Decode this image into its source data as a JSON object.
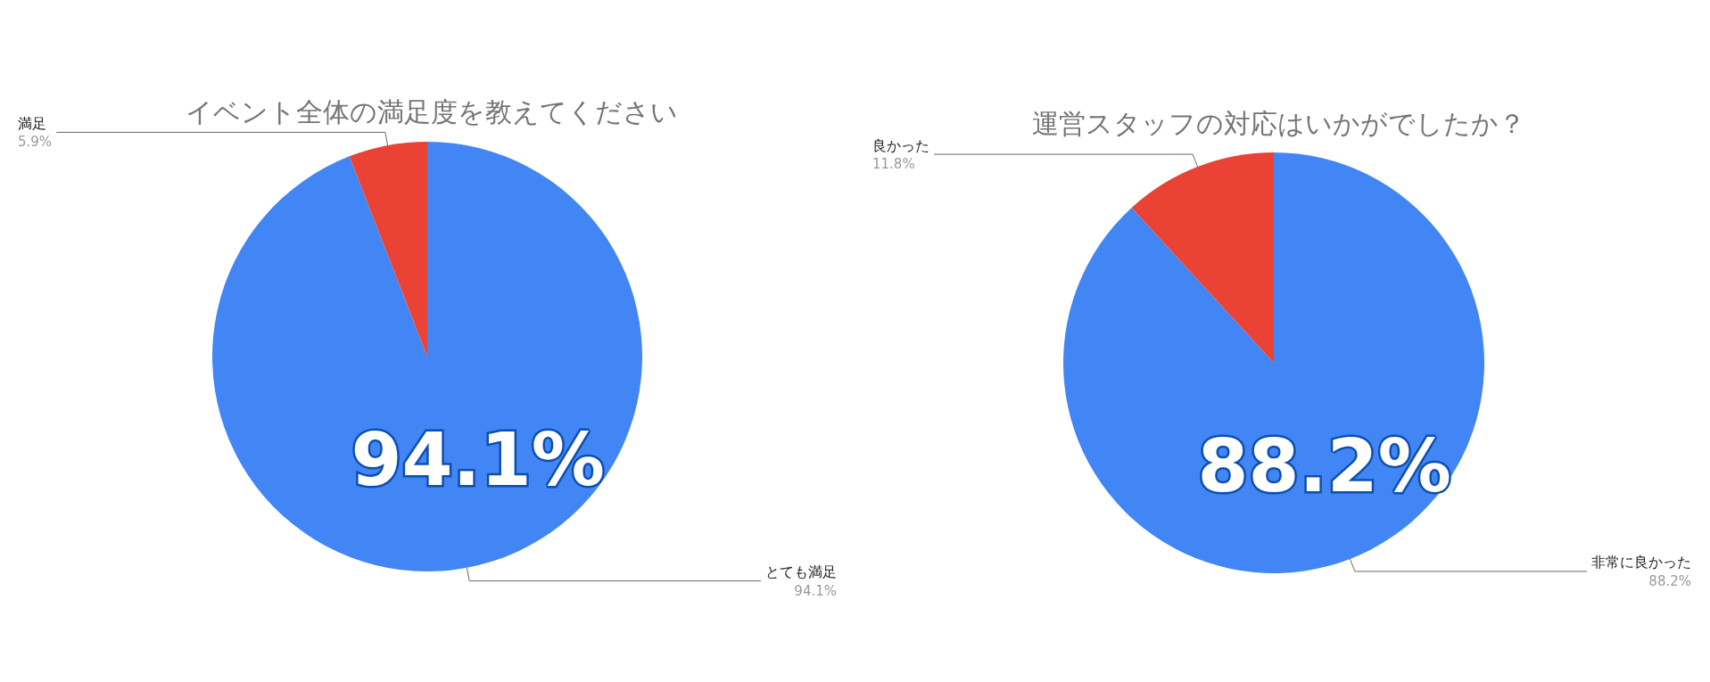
{
  "chart_data": [
    {
      "type": "pie",
      "title": "イベント全体の満足度を教えてください",
      "categories": [
        "とても満足",
        "満足"
      ],
      "values": [
        94.1,
        5.9
      ],
      "value_labels": [
        "94.1%",
        "5.9%"
      ],
      "colors": [
        "#4285f4",
        "#ea4335"
      ],
      "legend": false,
      "annotations": [
        "94.1%"
      ]
    },
    {
      "type": "pie",
      "title": "運営スタッフの対応はいかがでしたか？",
      "categories": [
        "非常に良かった",
        "良かった"
      ],
      "values": [
        88.2,
        11.8
      ],
      "value_labels": [
        "88.2%",
        "11.8%"
      ],
      "colors": [
        "#4285f4",
        "#ea4335"
      ],
      "legend": false,
      "annotations": [
        "88.2%"
      ]
    }
  ]
}
